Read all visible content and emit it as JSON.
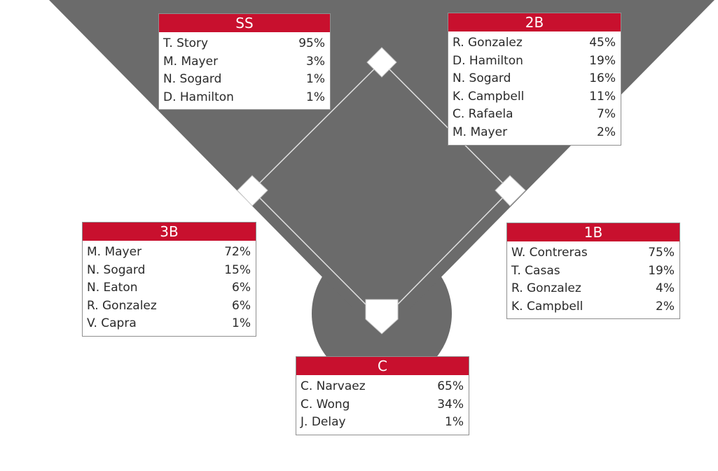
{
  "colors": {
    "field": "#6b6b6b",
    "base": "#ffffff",
    "header": "#c8102e",
    "baseline": "#e0e0e0"
  },
  "positions": {
    "ss": {
      "label": "SS",
      "players": [
        {
          "name": "T. Story",
          "pct": "95%"
        },
        {
          "name": "M. Mayer",
          "pct": "3%"
        },
        {
          "name": "N. Sogard",
          "pct": "1%"
        },
        {
          "name": "D. Hamilton",
          "pct": "1%"
        }
      ]
    },
    "second": {
      "label": "2B",
      "players": [
        {
          "name": "R. Gonzalez",
          "pct": "45%"
        },
        {
          "name": "D. Hamilton",
          "pct": "19%"
        },
        {
          "name": "N. Sogard",
          "pct": "16%"
        },
        {
          "name": "K. Campbell",
          "pct": "11%"
        },
        {
          "name": "C. Rafaela",
          "pct": "7%"
        },
        {
          "name": "M. Mayer",
          "pct": "2%"
        }
      ]
    },
    "third": {
      "label": "3B",
      "players": [
        {
          "name": "M. Mayer",
          "pct": "72%"
        },
        {
          "name": "N. Sogard",
          "pct": "15%"
        },
        {
          "name": "N. Eaton",
          "pct": "6%"
        },
        {
          "name": "R. Gonzalez",
          "pct": "6%"
        },
        {
          "name": "V. Capra",
          "pct": "1%"
        }
      ]
    },
    "first": {
      "label": "1B",
      "players": [
        {
          "name": "W. Contreras",
          "pct": "75%"
        },
        {
          "name": "T. Casas",
          "pct": "19%"
        },
        {
          "name": "R. Gonzalez",
          "pct": "4%"
        },
        {
          "name": "K. Campbell",
          "pct": "2%"
        }
      ]
    },
    "catcher": {
      "label": "C",
      "players": [
        {
          "name": "C. Narvaez",
          "pct": "65%"
        },
        {
          "name": "C. Wong",
          "pct": "34%"
        },
        {
          "name": "J. Delay",
          "pct": "1%"
        }
      ]
    }
  }
}
